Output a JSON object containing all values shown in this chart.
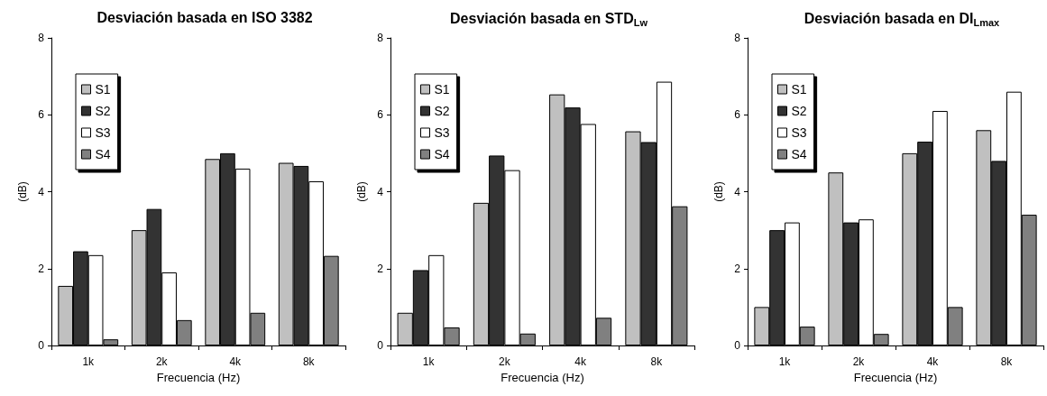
{
  "chart_data": [
    {
      "type": "bar",
      "title": "Desviación basada en ISO 3382",
      "xlabel": "Frecuencia (Hz)",
      "ylabel": "(dB)",
      "categories": [
        "1k",
        "2k",
        "4k",
        "8k"
      ],
      "series": [
        {
          "name": "S1",
          "color": "#c0c0c0",
          "values": [
            1.55,
            3.0,
            4.85,
            4.75
          ]
        },
        {
          "name": "S2",
          "color": "#333333",
          "values": [
            2.45,
            3.55,
            5.0,
            4.67
          ]
        },
        {
          "name": "S3",
          "color": "#ffffff",
          "values": [
            2.35,
            1.9,
            4.6,
            4.27
          ]
        },
        {
          "name": "S4",
          "color": "#808080",
          "values": [
            0.16,
            0.66,
            0.85,
            2.33
          ]
        }
      ],
      "ylim": [
        0,
        8
      ],
      "yticks": [
        0,
        2,
        4,
        6,
        8
      ],
      "grid": false,
      "legend": "top left"
    },
    {
      "type": "bar",
      "title": "Desviación basada en STD$_{Lw}$",
      "xlabel": "Frecuencia (Hz)",
      "ylabel": "(dB)",
      "categories": [
        "1k",
        "2k",
        "4k",
        "8k"
      ],
      "series": [
        {
          "name": "S1",
          "color": "#c0c0c0",
          "values": [
            0.85,
            3.71,
            6.53,
            5.57
          ]
        },
        {
          "name": "S2",
          "color": "#333333",
          "values": [
            1.96,
            4.94,
            6.19,
            5.29
          ]
        },
        {
          "name": "S3",
          "color": "#ffffff",
          "values": [
            2.35,
            4.56,
            5.76,
            6.86
          ]
        },
        {
          "name": "S4",
          "color": "#808080",
          "values": [
            0.47,
            0.31,
            0.72,
            3.62
          ]
        }
      ],
      "ylim": [
        0,
        8
      ],
      "yticks": [
        0,
        2,
        4,
        6,
        8
      ],
      "grid": false,
      "legend": "top left"
    },
    {
      "type": "bar",
      "title": "Desviación basada en DI$_{Lmax}$",
      "xlabel": "Frecuencia (Hz)",
      "ylabel": "(dB)",
      "categories": [
        "1k",
        "2k",
        "4k",
        "8k"
      ],
      "series": [
        {
          "name": "S1",
          "color": "#c0c0c0",
          "values": [
            1.0,
            4.5,
            5.0,
            5.6
          ]
        },
        {
          "name": "S2",
          "color": "#333333",
          "values": [
            3.0,
            3.2,
            5.3,
            4.8
          ]
        },
        {
          "name": "S3",
          "color": "#ffffff",
          "values": [
            3.2,
            3.28,
            6.1,
            6.6
          ]
        },
        {
          "name": "S4",
          "color": "#808080",
          "values": [
            0.49,
            0.3,
            1.0,
            3.4
          ]
        }
      ],
      "ylim": [
        0,
        8
      ],
      "yticks": [
        0,
        2,
        4,
        6,
        8
      ],
      "grid": false,
      "legend": "top left"
    }
  ]
}
